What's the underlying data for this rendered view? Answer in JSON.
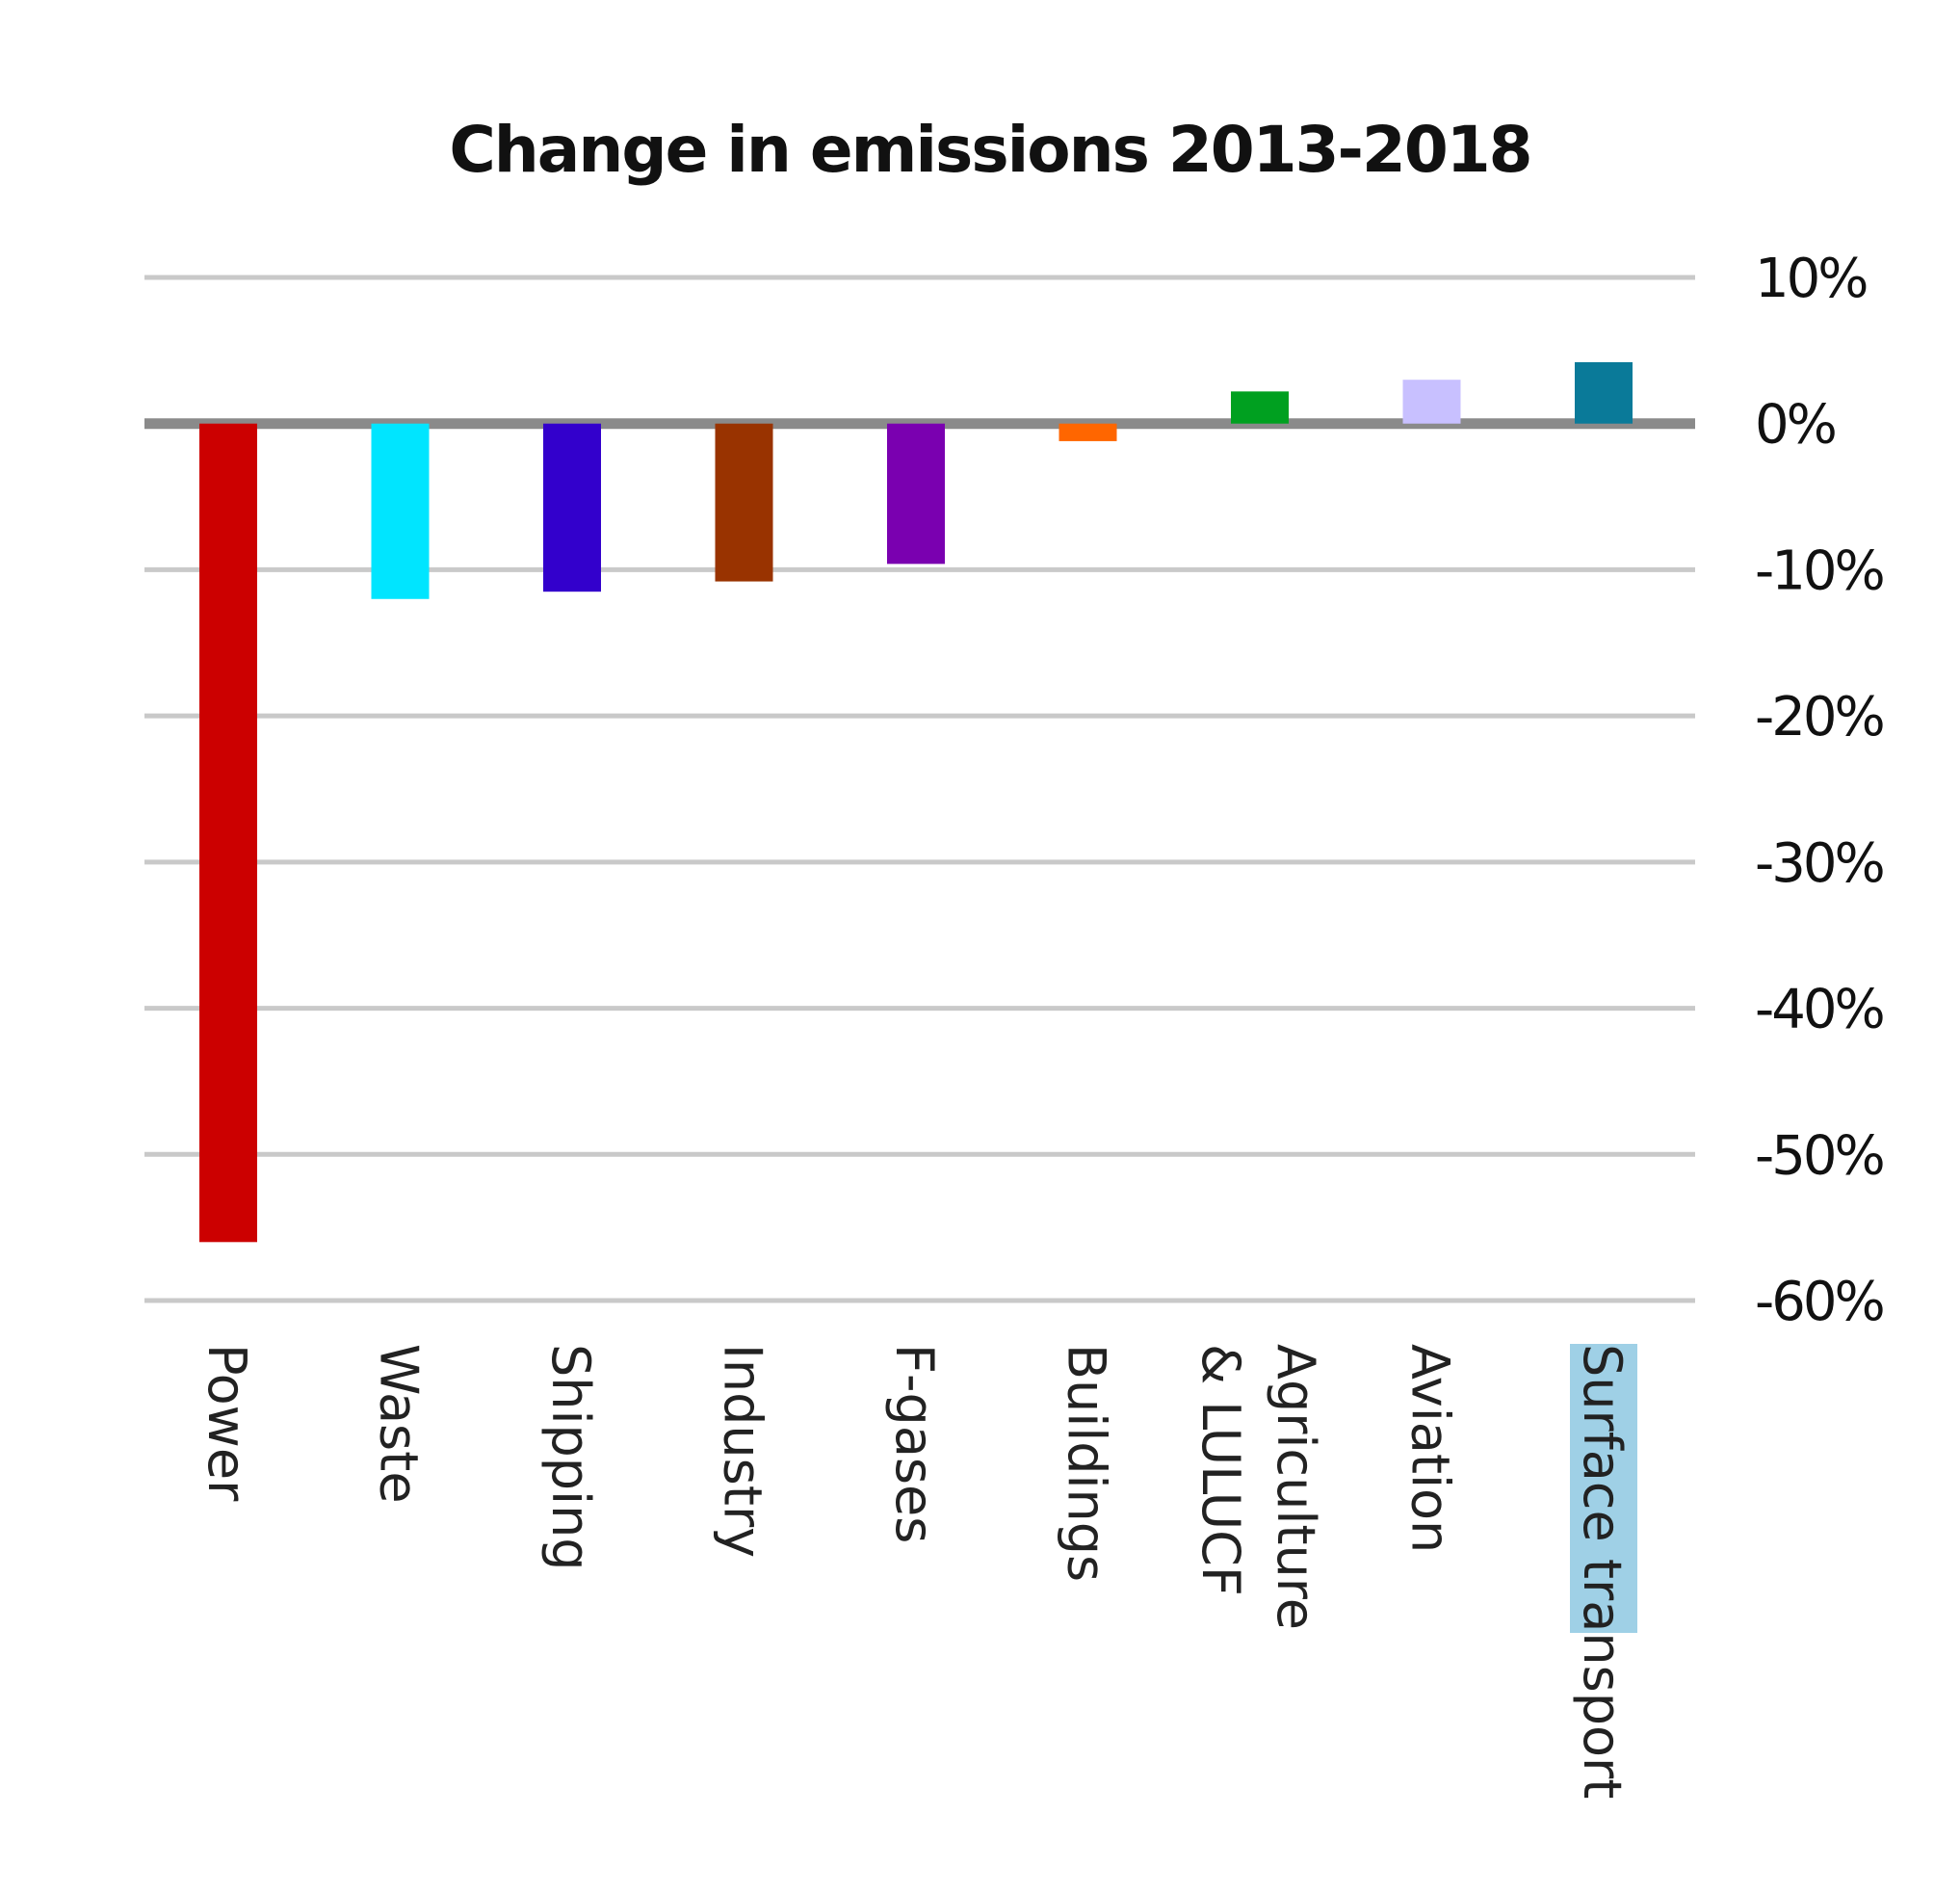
{
  "chart_data": {
    "type": "bar",
    "title": "Change in emissions 2013-2018",
    "categories": [
      "Power",
      "Waste",
      "Shipping",
      "Industry",
      "F-gases",
      "Buildings",
      "Agriculture & LULUCF",
      "Aviation",
      "Surface transport"
    ],
    "category_lines": [
      [
        "Power"
      ],
      [
        "Waste"
      ],
      [
        "Shipping"
      ],
      [
        "Industry"
      ],
      [
        "F-gases"
      ],
      [
        "Buildings"
      ],
      [
        "Agriculture",
        "& LULUCF"
      ],
      [
        "Aviation"
      ],
      [
        "Surface transport"
      ]
    ],
    "values": [
      -56,
      -12,
      -11.5,
      -10.8,
      -9.6,
      -1.2,
      2.2,
      3,
      4.2
    ],
    "colors": [
      "#cc0000",
      "#00e5ff",
      "#3300cc",
      "#993300",
      "#7a00b0",
      "#ff6600",
      "#00a020",
      "#c8c0ff",
      "#0a7a99"
    ],
    "ylim": [
      -60,
      10
    ],
    "yticks": [
      10,
      0,
      -10,
      -20,
      -30,
      -40,
      -50,
      -60
    ],
    "ytick_labels": [
      "10%",
      "0%",
      "-10%",
      "-20%",
      "-30%",
      "-40%",
      "-50%",
      "-60%"
    ],
    "y_axis_side": "right",
    "grid": true,
    "xlabel": "",
    "ylabel": ""
  }
}
